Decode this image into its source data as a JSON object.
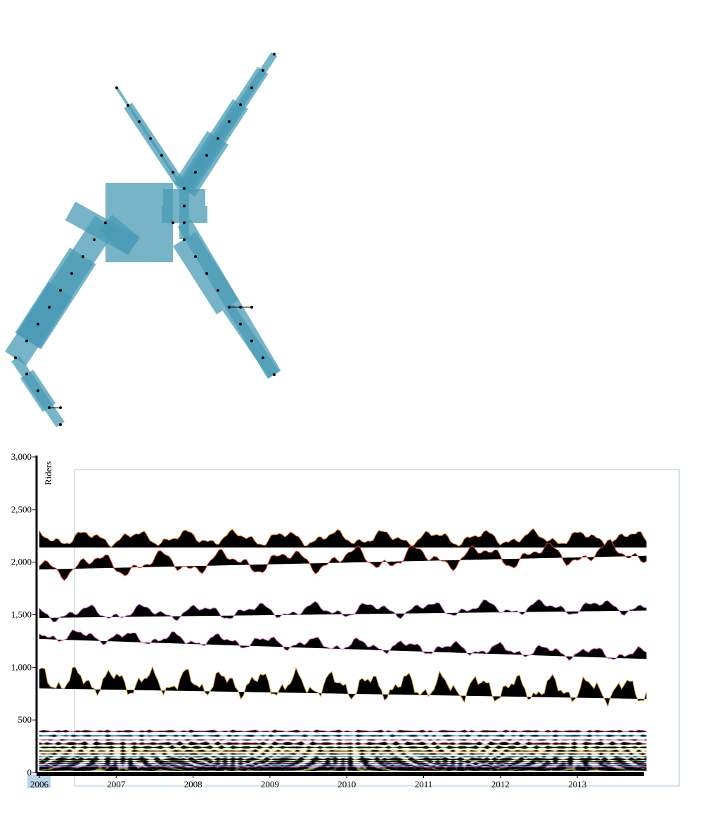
{
  "colors": {
    "map_fill": "#4a9bb5",
    "map_fill_opacity": 0.75,
    "station_dot": "#000000",
    "axis": "#000000",
    "area_fill": "#000000",
    "brush_frame": "#a9c7d4",
    "selection_highlight": "#bcd3ea"
  },
  "chart_data": [
    {
      "type": "map",
      "description_role": "transit network with rider-volume bars per segment",
      "stations": []
    },
    {
      "type": "area",
      "ylabel": "Riders",
      "xlabel": "",
      "ylim": [
        0,
        3000
      ],
      "xlim": [
        2006,
        2013.9
      ],
      "y_ticks": [
        "0",
        "500",
        "1,000",
        "1,500",
        "2,000",
        "2,500",
        "3,000"
      ],
      "y_tick_values": [
        0,
        500,
        1000,
        1500,
        2000,
        2500,
        3000
      ],
      "x_ticks": [
        "2006",
        "2007",
        "2008",
        "2009",
        "2010",
        "2011",
        "2012",
        "2013"
      ],
      "x_tick_values": [
        2006,
        2007,
        2008,
        2009,
        2010,
        2011,
        2012,
        2013
      ],
      "selected_x_tick": "2006",
      "grid": false,
      "series": [
        {
          "baseline": [
            2140,
            2140
          ],
          "color": "#f08030",
          "amp": 90,
          "offset": 90,
          "freq": 3.1
        },
        {
          "baseline": [
            1930,
            2060
          ],
          "color": "#e04030",
          "amp": 140,
          "offset": 30,
          "freq": 2.4
        },
        {
          "baseline": [
            1470,
            1540
          ],
          "color": "#c070d0",
          "amp": 90,
          "offset": 40,
          "freq": 2.7
        },
        {
          "baseline": [
            1270,
            1080
          ],
          "color": "#e070c0",
          "amp": 80,
          "offset": 40,
          "freq": 3.3
        },
        {
          "baseline": [
            800,
            700
          ],
          "color": "#d0a040",
          "amp": 160,
          "offset": 80,
          "freq": 4.2
        }
      ],
      "minor_band_count": 18,
      "minor_band_range": [
        20,
        390
      ],
      "minor_colors": [
        "#30c0d0",
        "#f08030",
        "#e0d040",
        "#40a040",
        "#d04040",
        "#9060c0",
        "#40a0f0",
        "#f070b0",
        "#70c070",
        "#a07030"
      ]
    }
  ]
}
